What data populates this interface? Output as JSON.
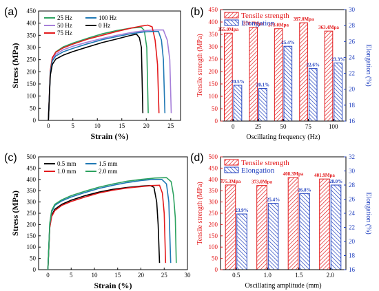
{
  "chart_data": [
    {
      "panel": "(a)",
      "type": "line",
      "xlabel": "Strain (%)",
      "ylabel": "Stress (MPa)",
      "xlim": [
        -2,
        27
      ],
      "ylim": [
        0,
        450
      ],
      "xticks": [
        0,
        5,
        10,
        15,
        20,
        25
      ],
      "yticks": [
        0,
        50,
        100,
        150,
        200,
        250,
        300,
        350,
        400,
        450
      ],
      "legend": "top-left",
      "series": [
        {
          "name": "25 Hz",
          "color": "#2ca25f",
          "points": [
            [
              0,
              0
            ],
            [
              0.4,
              200
            ],
            [
              0.8,
              255
            ],
            [
              1.5,
              282
            ],
            [
              3,
              302
            ],
            [
              5,
              318
            ],
            [
              8,
              338
            ],
            [
              11,
              356
            ],
            [
              14,
              370
            ],
            [
              17,
              380
            ],
            [
              19,
              383
            ],
            [
              19.6,
              370
            ],
            [
              20.1,
              300
            ],
            [
              20.4,
              30
            ]
          ]
        },
        {
          "name": "50 Hz",
          "color": "#a67fd9",
          "points": [
            [
              0,
              0
            ],
            [
              0.4,
              195
            ],
            [
              0.8,
              250
            ],
            [
              1.5,
              272
            ],
            [
              3,
              290
            ],
            [
              5,
              305
            ],
            [
              8,
              322
            ],
            [
              11,
              337
            ],
            [
              14,
              350
            ],
            [
              17,
              362
            ],
            [
              20,
              370
            ],
            [
              22,
              372
            ],
            [
              23.5,
              372
            ],
            [
              24.3,
              330
            ],
            [
              24.8,
              250
            ],
            [
              25.1,
              30
            ]
          ]
        },
        {
          "name": "75 Hz",
          "color": "#e31a1c",
          "points": [
            [
              0,
              0
            ],
            [
              0.4,
              205
            ],
            [
              0.8,
              258
            ],
            [
              1.5,
              280
            ],
            [
              3,
              298
            ],
            [
              5,
              314
            ],
            [
              8,
              334
            ],
            [
              11,
              350
            ],
            [
              14,
              366
            ],
            [
              17,
              380
            ],
            [
              19,
              388
            ],
            [
              20.3,
              392
            ],
            [
              21.2,
              385
            ],
            [
              21.8,
              330
            ],
            [
              22.3,
              230
            ],
            [
              22.6,
              30
            ]
          ]
        },
        {
          "name": "100 Hz",
          "color": "#1f78b4",
          "points": [
            [
              0,
              0
            ],
            [
              0.4,
              195
            ],
            [
              0.8,
              245
            ],
            [
              1.5,
              265
            ],
            [
              3,
              282
            ],
            [
              5,
              296
            ],
            [
              8,
              315
            ],
            [
              11,
              332
            ],
            [
              14,
              345
            ],
            [
              17,
              357
            ],
            [
              19.5,
              364
            ],
            [
              21.5,
              366
            ],
            [
              22.5,
              366
            ],
            [
              23.1,
              330
            ],
            [
              23.5,
              250
            ],
            [
              23.8,
              30
            ]
          ]
        },
        {
          "name": "0 Hz",
          "color": "#000000",
          "points": [
            [
              0,
              0
            ],
            [
              0.4,
              185
            ],
            [
              0.8,
              230
            ],
            [
              1.5,
              252
            ],
            [
              3,
              268
            ],
            [
              5,
              283
            ],
            [
              8,
              302
            ],
            [
              11,
              320
            ],
            [
              14,
              335
            ],
            [
              16.5,
              348
            ],
            [
              18,
              355
            ],
            [
              18.6,
              340
            ],
            [
              19,
              300
            ],
            [
              19.3,
              30
            ]
          ]
        }
      ]
    },
    {
      "panel": "(b)",
      "type": "bar",
      "xlabel": "Oscillating frequency (Hz)",
      "ylabel_left": "Tensile strength (MPa)",
      "ylabel_right": "Elongation (%)",
      "categories": [
        "0",
        "25",
        "50",
        "75",
        "100"
      ],
      "ylim_left": [
        0,
        450
      ],
      "yticks_left": [
        0,
        50,
        100,
        150,
        200,
        250,
        300,
        350,
        400,
        450
      ],
      "ylim_right": [
        16,
        30
      ],
      "yticks_right": [
        16,
        18,
        20,
        22,
        24,
        26,
        28,
        30
      ],
      "legend": "top-left",
      "series": [
        {
          "name": "Tensile strength",
          "axis": "left",
          "color": "#e31a1c",
          "values": [
            355.0,
            378.7,
            373.0,
            397.0,
            363.4
          ],
          "labels": [
            "355.0Mpa",
            "378.7Mpa",
            "373.0Mpa",
            "397.0Mpa",
            "363.4Mpa"
          ]
        },
        {
          "name": "Elongation",
          "axis": "right",
          "color": "#1f3fbf",
          "values": [
            20.5,
            20.1,
            25.4,
            22.6,
            23.3
          ],
          "labels": [
            "20.5%",
            "20.1%",
            "25.4%",
            "22.6%",
            "23.3%"
          ]
        }
      ]
    },
    {
      "panel": "(c)",
      "type": "line",
      "xlabel": "Strain (%)",
      "ylabel": "Stress (MPa)",
      "xlim": [
        -2,
        30
      ],
      "ylim": [
        0,
        500
      ],
      "xticks": [
        0,
        5,
        10,
        15,
        20,
        25,
        30
      ],
      "yticks": [
        0,
        50,
        100,
        150,
        200,
        250,
        300,
        350,
        400,
        450,
        500
      ],
      "legend": "top-left",
      "series": [
        {
          "name": "0.5 mm",
          "color": "#000000",
          "points": [
            [
              0,
              0
            ],
            [
              0.4,
              190
            ],
            [
              0.8,
              240
            ],
            [
              1.5,
              268
            ],
            [
              3,
              290
            ],
            [
              5,
              308
            ],
            [
              8,
              328
            ],
            [
              11,
              344
            ],
            [
              14,
              356
            ],
            [
              17,
              364
            ],
            [
              20,
              370
            ],
            [
              22,
              373
            ],
            [
              22.8,
              365
            ],
            [
              23.4,
              300
            ],
            [
              23.7,
              200
            ],
            [
              24,
              30
            ]
          ]
        },
        {
          "name": "1.0 mm",
          "color": "#e31a1c",
          "points": [
            [
              0,
              0
            ],
            [
              0.4,
              185
            ],
            [
              0.8,
              235
            ],
            [
              1.5,
              262
            ],
            [
              3,
              285
            ],
            [
              5,
              302
            ],
            [
              8,
              322
            ],
            [
              11,
              340
            ],
            [
              14,
              352
            ],
            [
              17,
              362
            ],
            [
              20,
              368
            ],
            [
              22.5,
              373
            ],
            [
              24,
              374
            ],
            [
              24.6,
              340
            ],
            [
              25,
              250
            ],
            [
              25.3,
              30
            ]
          ]
        },
        {
          "name": "1.5 mm",
          "color": "#1f78b4",
          "points": [
            [
              0,
              0
            ],
            [
              0.4,
              200
            ],
            [
              0.8,
              255
            ],
            [
              1.5,
              285
            ],
            [
              3,
              305
            ],
            [
              5,
              322
            ],
            [
              8,
              342
            ],
            [
              11,
              360
            ],
            [
              14,
              374
            ],
            [
              17,
              386
            ],
            [
              20,
              395
            ],
            [
              22.5,
              400
            ],
            [
              24.5,
              400
            ],
            [
              25.5,
              380
            ],
            [
              26,
              300
            ],
            [
              26.4,
              30
            ]
          ]
        },
        {
          "name": "2.0 mm",
          "color": "#2ca25f",
          "points": [
            [
              0,
              0
            ],
            [
              0.4,
              205
            ],
            [
              0.8,
              262
            ],
            [
              1.5,
              290
            ],
            [
              3,
              310
            ],
            [
              5,
              328
            ],
            [
              8,
              348
            ],
            [
              11,
              366
            ],
            [
              14,
              380
            ],
            [
              17,
              392
            ],
            [
              20,
              400
            ],
            [
              23,
              406
            ],
            [
              25.5,
              408
            ],
            [
              26.5,
              390
            ],
            [
              27,
              330
            ],
            [
              27.4,
              230
            ],
            [
              27.6,
              30
            ]
          ]
        }
      ]
    },
    {
      "panel": "(d)",
      "type": "bar",
      "xlabel": "Oscillating amplitude (mm)",
      "ylabel_left": "Tensile strength (MPa)",
      "ylabel_right": "Elongation (%)",
      "categories": [
        "0.5",
        "1.0",
        "1.5",
        "2.0"
      ],
      "ylim_left": [
        0,
        500
      ],
      "yticks_left": [
        0,
        50,
        100,
        150,
        200,
        250,
        300,
        350,
        400,
        450,
        500
      ],
      "ylim_right": [
        16,
        32
      ],
      "yticks_right": [
        16,
        18,
        20,
        22,
        24,
        26,
        28,
        30,
        32
      ],
      "legend": "top-left",
      "series": [
        {
          "name": "Tensile strength",
          "axis": "left",
          "color": "#e31a1c",
          "values": [
            375.3,
            373.0,
            408.3,
            401.9
          ],
          "labels": [
            "375.3Mpa",
            "373.0Mpa",
            "408.3Mpa",
            "401.9Mpa"
          ]
        },
        {
          "name": "Elongation",
          "axis": "right",
          "color": "#1f3fbf",
          "values": [
            23.9,
            25.4,
            26.8,
            28.0
          ],
          "labels": [
            "23.9%",
            "25.4%",
            "26.8%",
            "28.0%"
          ]
        }
      ]
    }
  ]
}
